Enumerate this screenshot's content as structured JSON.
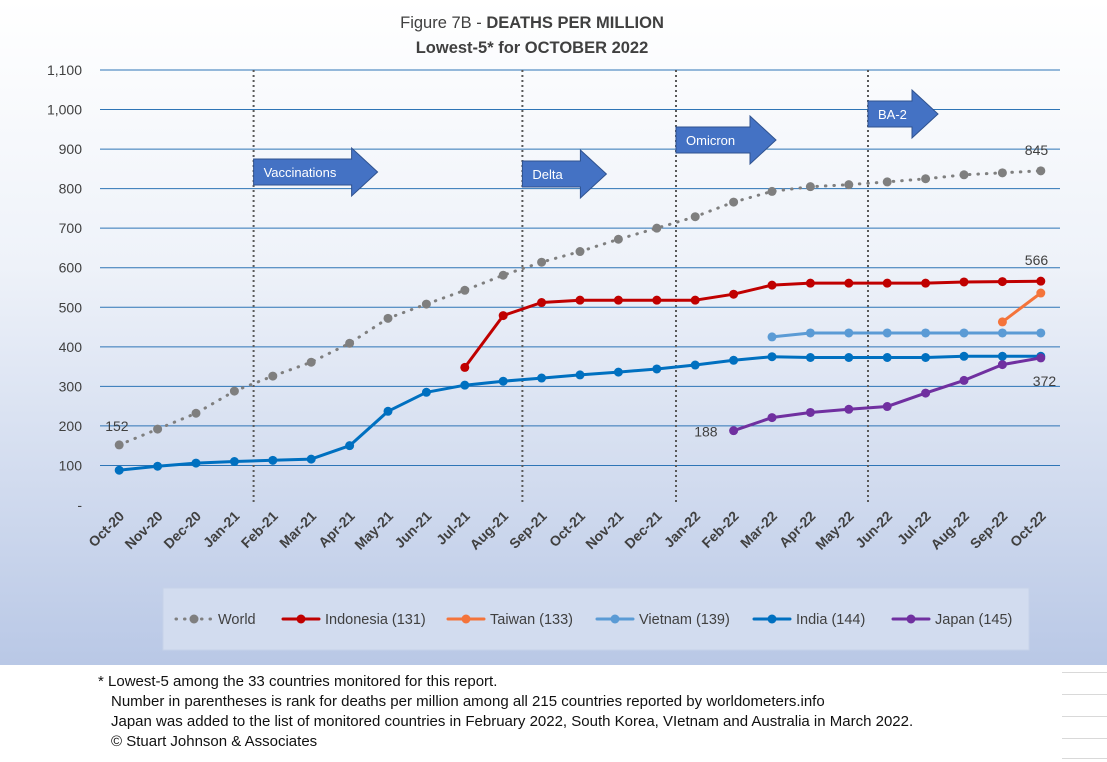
{
  "chart_data": {
    "type": "line",
    "title_prefix": "Figure 7B - ",
    "title_bold": "DEATHS PER MILLION",
    "subtitle": "Lowest-5* for OCTOBER 2022",
    "categories": [
      "Oct-20",
      "Nov-20",
      "Dec-20",
      "Jan-21",
      "Feb-21",
      "Mar-21",
      "Apr-21",
      "May-21",
      "Jun-21",
      "Jul-21",
      "Aug-21",
      "Sep-21",
      "Oct-21",
      "Nov-21",
      "Dec-21",
      "Jan-22",
      "Feb-22",
      "Mar-22",
      "Apr-22",
      "May-22",
      "Jun-22",
      "Jul-22",
      "Aug-22",
      "Sep-22",
      "Oct-22"
    ],
    "y_ticks": [
      "-",
      "100",
      "200",
      "300",
      "400",
      "500",
      "600",
      "700",
      "800",
      "900",
      "1,000",
      "1,100"
    ],
    "ylim": [
      0,
      1100
    ],
    "grid": true,
    "legend_position": "bottom",
    "series": [
      {
        "name": "World",
        "color": "#7f7f7f",
        "style": "dotted",
        "values": [
          152,
          192,
          232,
          288,
          326,
          361,
          409,
          472,
          508,
          543,
          581,
          614,
          641,
          672,
          700,
          729,
          766,
          793,
          805,
          810,
          817,
          825,
          835,
          840,
          845
        ]
      },
      {
        "name": "Indonesia (131)",
        "color": "#c00000",
        "style": "solid",
        "values": [
          null,
          null,
          null,
          null,
          null,
          null,
          null,
          null,
          null,
          348,
          479,
          512,
          518,
          518,
          518,
          518,
          533,
          556,
          561,
          561,
          561,
          561,
          564,
          565,
          566
        ]
      },
      {
        "name": "Taiwan (133)",
        "color": "#f4743b",
        "style": "solid",
        "values": [
          null,
          null,
          null,
          null,
          null,
          null,
          null,
          null,
          null,
          null,
          null,
          null,
          null,
          null,
          null,
          null,
          null,
          null,
          null,
          null,
          null,
          null,
          null,
          463,
          536
        ]
      },
      {
        "name": "Vietnam (139)",
        "color": "#5b9bd5",
        "style": "solid",
        "values": [
          null,
          null,
          null,
          null,
          null,
          null,
          null,
          null,
          null,
          null,
          null,
          null,
          null,
          null,
          null,
          null,
          null,
          425,
          435,
          435,
          435,
          435,
          435,
          435,
          435
        ]
      },
      {
        "name": "India (144)",
        "color": "#0070c0",
        "style": "solid",
        "values": [
          88,
          98,
          106,
          110,
          113,
          116,
          150,
          237,
          285,
          303,
          313,
          321,
          329,
          336,
          344,
          354,
          366,
          375,
          373,
          373,
          373,
          373,
          376,
          376,
          376
        ]
      },
      {
        "name": "Japan (145)",
        "color": "#7030a0",
        "style": "solid",
        "values": [
          null,
          null,
          null,
          null,
          null,
          null,
          null,
          null,
          null,
          null,
          null,
          null,
          null,
          null,
          null,
          null,
          188,
          221,
          234,
          242,
          249,
          283,
          315,
          355,
          372
        ]
      }
    ],
    "data_labels": [
      {
        "text": "152",
        "series": 0,
        "index": 0
      },
      {
        "text": "845",
        "series": 0,
        "index": 24
      },
      {
        "text": "566",
        "series": 1,
        "index": 24
      },
      {
        "text": "372",
        "series": 5,
        "index": 24
      },
      {
        "text": "188",
        "series": 5,
        "index": 16
      }
    ],
    "markers": [
      {
        "label": "Vaccinations",
        "index": 3
      },
      {
        "label": "Delta",
        "index": 10
      },
      {
        "label": "Omicron",
        "index": 14
      },
      {
        "label": "BA-2",
        "index": 19
      }
    ]
  },
  "footnotes": {
    "line1": "* Lowest-5 among the 33 countries monitored for this report.",
    "line2": "Number in parentheses is rank for deaths per million among all 215 countries reported by worldometers.info",
    "line3": "Japan was added to the list of monitored countries in February 2022, South Korea, VIetnam and Australia in March 2022.",
    "line4": "© Stuart Johnson & Associates"
  }
}
